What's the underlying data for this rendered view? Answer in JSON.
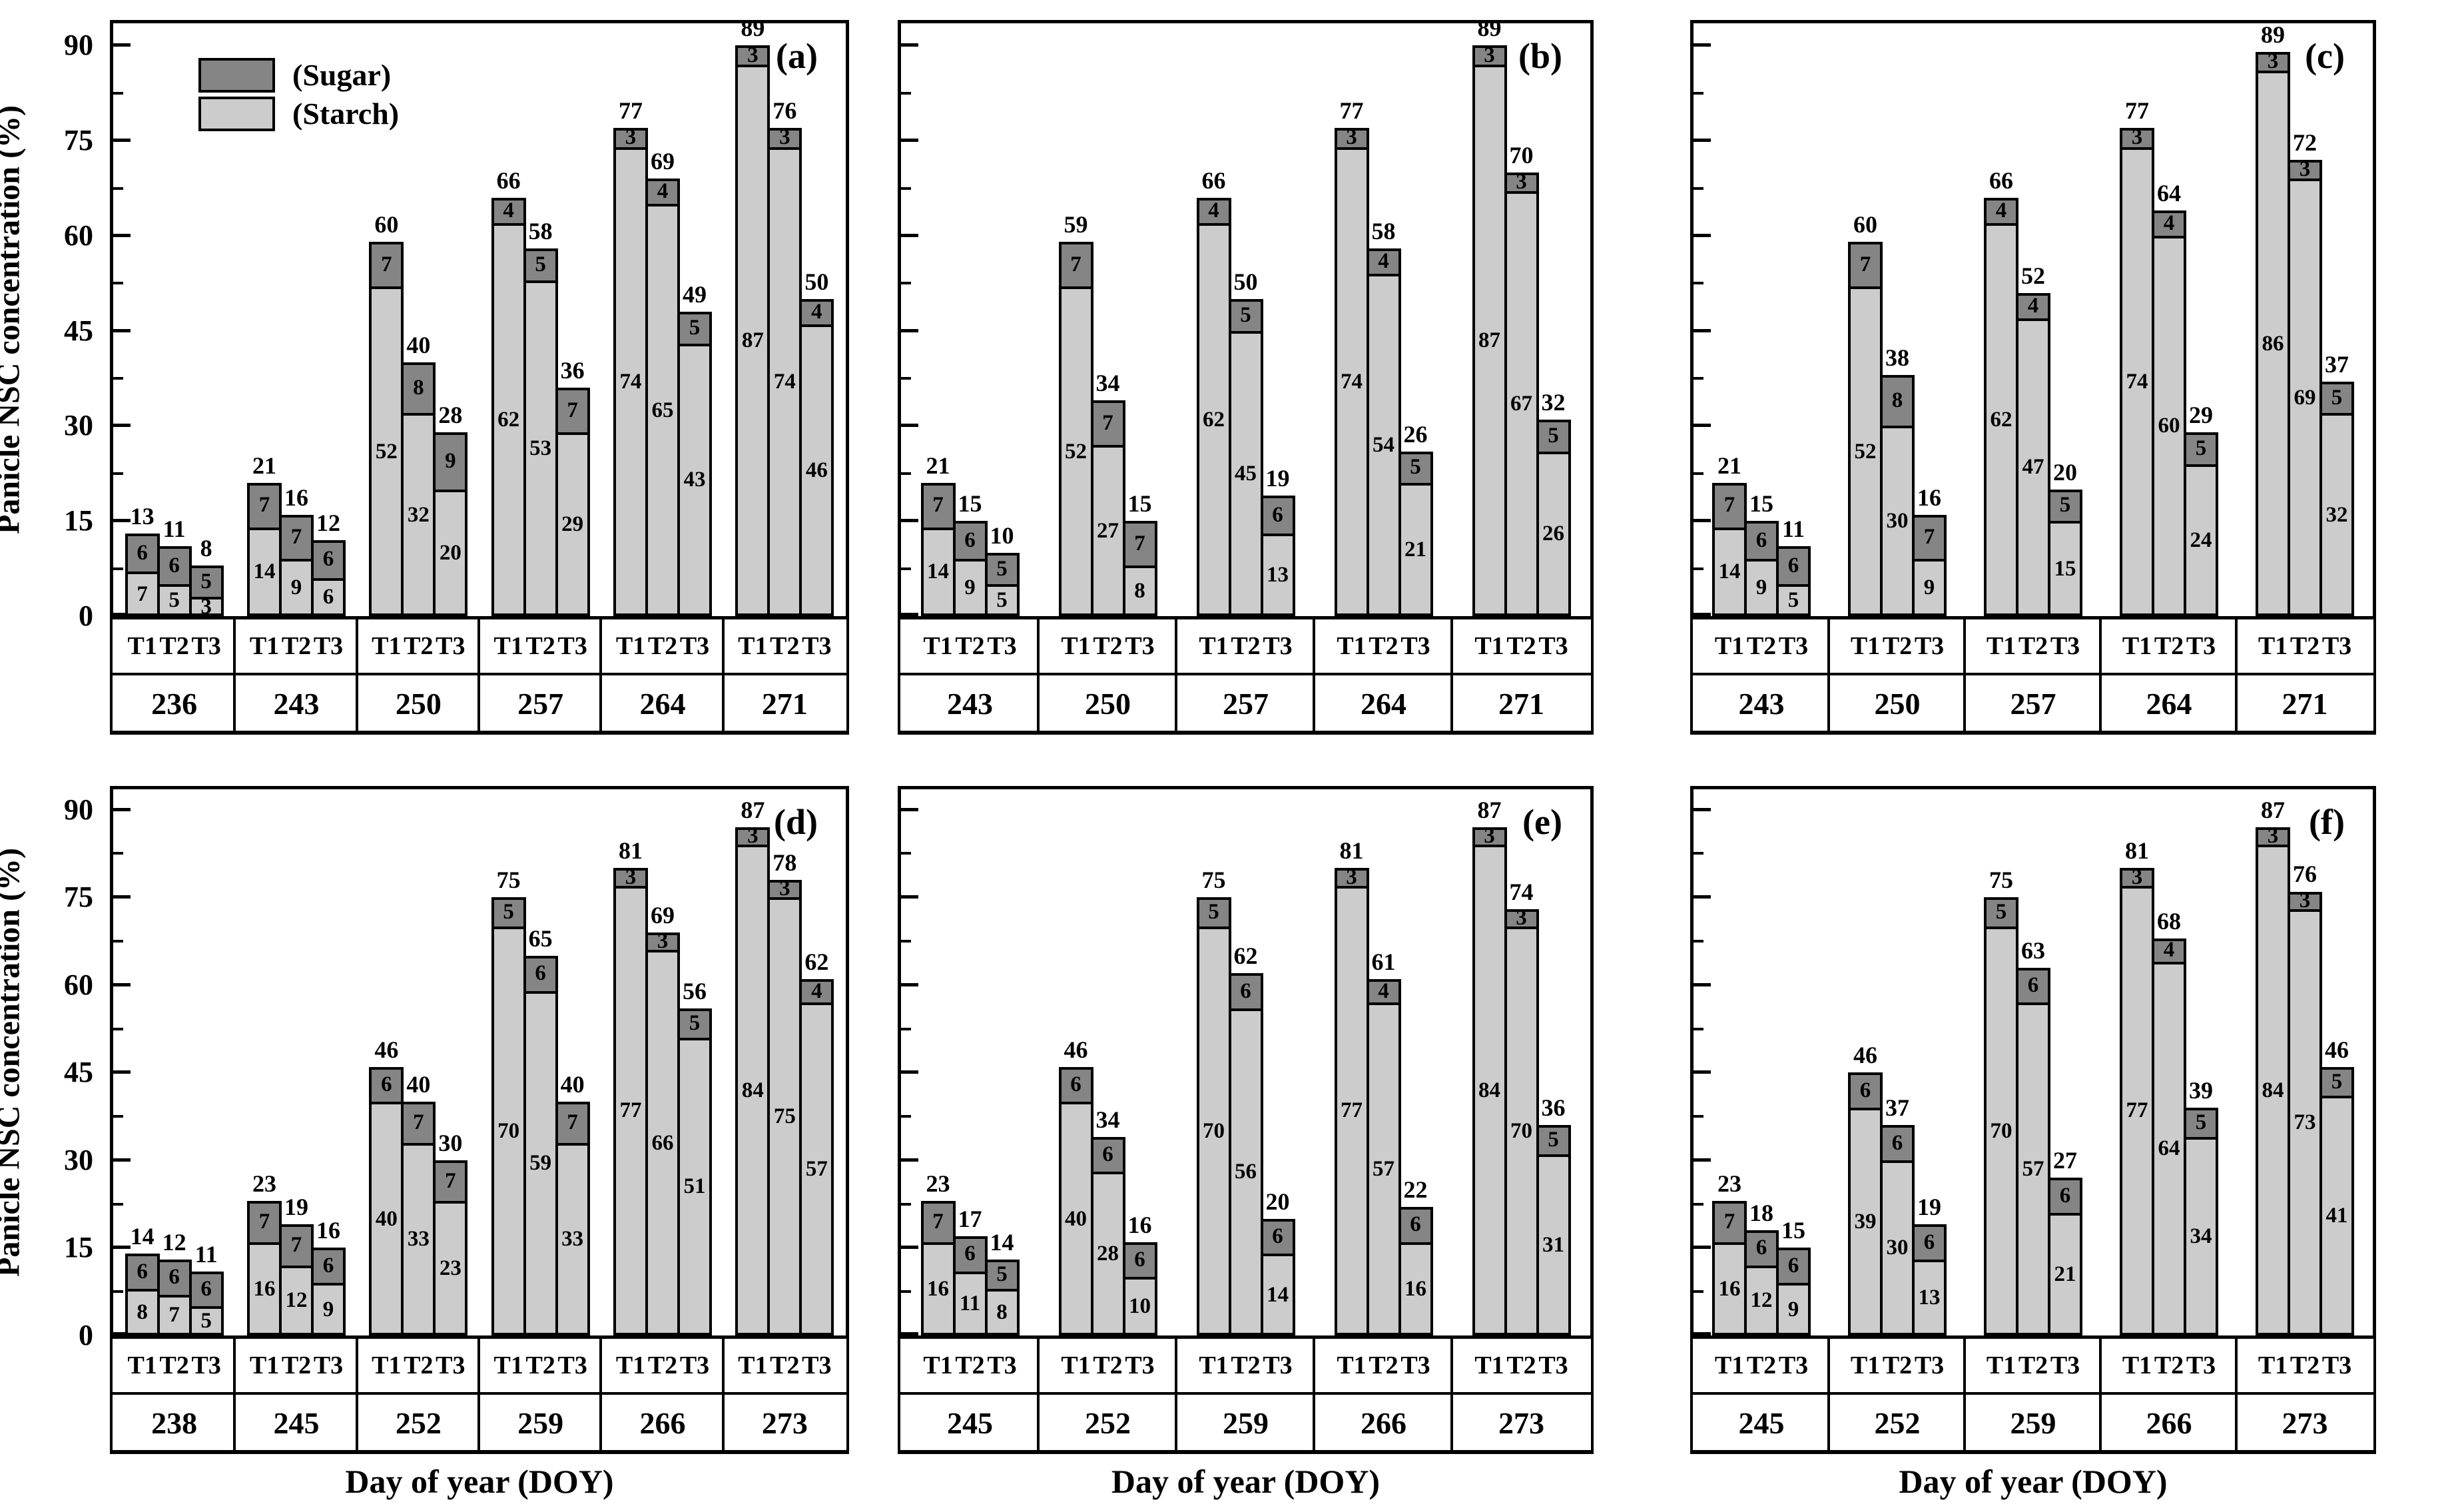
{
  "chart_data": {
    "type": "bar",
    "stacked": true,
    "title": "",
    "ylabel": "Panicle NSC concentration (%)",
    "xlabel": "Day of year (DOY)",
    "yticks": [
      0,
      15,
      30,
      45,
      60,
      75,
      90
    ],
    "ylim": [
      0,
      93.5
    ],
    "minor_tick_step": 7.5,
    "treatments": [
      "T1",
      "T2",
      "T3"
    ],
    "legend": {
      "sugar_label": "(Sugar)",
      "starch_label": "(Starch)"
    },
    "colors": {
      "sugar": "#858585",
      "starch": "#cccccc",
      "axis": "#000000",
      "background": "#ffffff"
    },
    "panels": [
      {
        "id": "a",
        "letter": "(a)",
        "row": 0,
        "col": 0,
        "show_y_tick_labels": true,
        "show_y_title": true,
        "show_legend": true,
        "show_x_title": false,
        "groups": [
          {
            "doy": "236",
            "bars": [
              {
                "t": "T1",
                "starch": 7,
                "sugar": 6,
                "total": 13
              },
              {
                "t": "T2",
                "starch": 5,
                "sugar": 6,
                "total": 11
              },
              {
                "t": "T3",
                "starch": 3,
                "sugar": 5,
                "total": 8
              }
            ]
          },
          {
            "doy": "243",
            "bars": [
              {
                "t": "T1",
                "starch": 14,
                "sugar": 7,
                "total": 21
              },
              {
                "t": "T2",
                "starch": 9,
                "sugar": 7,
                "total": 16
              },
              {
                "t": "T3",
                "starch": 6,
                "sugar": 6,
                "total": 12
              }
            ]
          },
          {
            "doy": "250",
            "bars": [
              {
                "t": "T1",
                "starch": 52,
                "sugar": 7,
                "total": 60
              },
              {
                "t": "T2",
                "starch": 32,
                "sugar": 8,
                "total": 40
              },
              {
                "t": "T3",
                "starch": 20,
                "sugar": 9,
                "total": 28
              }
            ]
          },
          {
            "doy": "257",
            "bars": [
              {
                "t": "T1",
                "starch": 62,
                "sugar": 4,
                "total": 66
              },
              {
                "t": "T2",
                "starch": 53,
                "sugar": 5,
                "total": 58
              },
              {
                "t": "T3",
                "starch": 29,
                "sugar": 7,
                "total": 36
              }
            ]
          },
          {
            "doy": "264",
            "bars": [
              {
                "t": "T1",
                "starch": 74,
                "sugar": 3,
                "total": 77
              },
              {
                "t": "T2",
                "starch": 65,
                "sugar": 4,
                "total": 69
              },
              {
                "t": "T3",
                "starch": 43,
                "sugar": 5,
                "total": 49
              }
            ]
          },
          {
            "doy": "271",
            "bars": [
              {
                "t": "T1",
                "starch": 87,
                "sugar": 3,
                "total": 89
              },
              {
                "t": "T2",
                "starch": 74,
                "sugar": 3,
                "total": 76
              },
              {
                "t": "T3",
                "starch": 46,
                "sugar": 4,
                "total": 50
              }
            ]
          }
        ]
      },
      {
        "id": "b",
        "letter": "(b)",
        "row": 0,
        "col": 1,
        "show_y_tick_labels": false,
        "show_y_title": false,
        "show_legend": false,
        "show_x_title": false,
        "groups": [
          {
            "doy": "243",
            "bars": [
              {
                "t": "T1",
                "starch": 14,
                "sugar": 7,
                "total": 21
              },
              {
                "t": "T2",
                "starch": 9,
                "sugar": 6,
                "total": 15
              },
              {
                "t": "T3",
                "starch": 5,
                "sugar": 5,
                "total": 10
              }
            ]
          },
          {
            "doy": "250",
            "bars": [
              {
                "t": "T1",
                "starch": 52,
                "sugar": 7,
                "total": 59
              },
              {
                "t": "T2",
                "starch": 27,
                "sugar": 7,
                "total": 34
              },
              {
                "t": "T3",
                "starch": 8,
                "sugar": 7,
                "total": 15
              }
            ]
          },
          {
            "doy": "257",
            "bars": [
              {
                "t": "T1",
                "starch": 62,
                "sugar": 4,
                "total": 66
              },
              {
                "t": "T2",
                "starch": 45,
                "sugar": 5,
                "total": 50
              },
              {
                "t": "T3",
                "starch": 13,
                "sugar": 6,
                "total": 19
              }
            ]
          },
          {
            "doy": "264",
            "bars": [
              {
                "t": "T1",
                "starch": 74,
                "sugar": 3,
                "total": 77
              },
              {
                "t": "T2",
                "starch": 54,
                "sugar": 4,
                "total": 58
              },
              {
                "t": "T3",
                "starch": 21,
                "sugar": 5,
                "total": 26
              }
            ]
          },
          {
            "doy": "271",
            "bars": [
              {
                "t": "T1",
                "starch": 87,
                "sugar": 3,
                "total": 89
              },
              {
                "t": "T2",
                "starch": 67,
                "sugar": 3,
                "total": 70
              },
              {
                "t": "T3",
                "starch": 26,
                "sugar": 5,
                "total": 32
              }
            ]
          }
        ]
      },
      {
        "id": "c",
        "letter": "(c)",
        "row": 0,
        "col": 2,
        "show_y_tick_labels": false,
        "show_y_title": false,
        "show_legend": false,
        "show_x_title": false,
        "groups": [
          {
            "doy": "243",
            "bars": [
              {
                "t": "T1",
                "starch": 14,
                "sugar": 7,
                "total": 21
              },
              {
                "t": "T2",
                "starch": 9,
                "sugar": 6,
                "total": 15
              },
              {
                "t": "T3",
                "starch": 5,
                "sugar": 6,
                "total": 11
              }
            ]
          },
          {
            "doy": "250",
            "bars": [
              {
                "t": "T1",
                "starch": 52,
                "sugar": 7,
                "total": 60
              },
              {
                "t": "T2",
                "starch": 30,
                "sugar": 8,
                "total": 38
              },
              {
                "t": "T3",
                "starch": 9,
                "sugar": 7,
                "total": 16
              }
            ]
          },
          {
            "doy": "257",
            "bars": [
              {
                "t": "T1",
                "starch": 62,
                "sugar": 4,
                "total": 66
              },
              {
                "t": "T2",
                "starch": 47,
                "sugar": 4,
                "total": 52
              },
              {
                "t": "T3",
                "starch": 15,
                "sugar": 5,
                "total": 20
              }
            ]
          },
          {
            "doy": "264",
            "bars": [
              {
                "t": "T1",
                "starch": 74,
                "sugar": 3,
                "total": 77
              },
              {
                "t": "T2",
                "starch": 60,
                "sugar": 4,
                "total": 64
              },
              {
                "t": "T3",
                "starch": 24,
                "sugar": 5,
                "total": 29
              }
            ]
          },
          {
            "doy": "271",
            "bars": [
              {
                "t": "T1",
                "starch": 86,
                "sugar": 3,
                "total": 89
              },
              {
                "t": "T2",
                "starch": 69,
                "sugar": 3,
                "total": 72
              },
              {
                "t": "T3",
                "starch": 32,
                "sugar": 5,
                "total": 37
              }
            ]
          }
        ]
      },
      {
        "id": "d",
        "letter": "(d)",
        "row": 1,
        "col": 0,
        "show_y_tick_labels": true,
        "show_y_title": true,
        "show_legend": false,
        "show_x_title": true,
        "groups": [
          {
            "doy": "238",
            "bars": [
              {
                "t": "T1",
                "starch": 8,
                "sugar": 6,
                "total": 14
              },
              {
                "t": "T2",
                "starch": 7,
                "sugar": 6,
                "total": 12
              },
              {
                "t": "T3",
                "starch": 5,
                "sugar": 6,
                "total": 11
              }
            ]
          },
          {
            "doy": "245",
            "bars": [
              {
                "t": "T1",
                "starch": 16,
                "sugar": 7,
                "total": 23
              },
              {
                "t": "T2",
                "starch": 12,
                "sugar": 7,
                "total": 19
              },
              {
                "t": "T3",
                "starch": 9,
                "sugar": 6,
                "total": 16
              }
            ]
          },
          {
            "doy": "252",
            "bars": [
              {
                "t": "T1",
                "starch": 40,
                "sugar": 6,
                "total": 46
              },
              {
                "t": "T2",
                "starch": 33,
                "sugar": 7,
                "total": 40
              },
              {
                "t": "T3",
                "starch": 23,
                "sugar": 7,
                "total": 30
              }
            ]
          },
          {
            "doy": "259",
            "bars": [
              {
                "t": "T1",
                "starch": 70,
                "sugar": 5,
                "total": 75
              },
              {
                "t": "T2",
                "starch": 59,
                "sugar": 6,
                "total": 65
              },
              {
                "t": "T3",
                "starch": 33,
                "sugar": 7,
                "total": 40
              }
            ]
          },
          {
            "doy": "266",
            "bars": [
              {
                "t": "T1",
                "starch": 77,
                "sugar": 3,
                "total": 81
              },
              {
                "t": "T2",
                "starch": 66,
                "sugar": 3,
                "total": 69
              },
              {
                "t": "T3",
                "starch": 51,
                "sugar": 5,
                "total": 56
              }
            ]
          },
          {
            "doy": "273",
            "bars": [
              {
                "t": "T1",
                "starch": 84,
                "sugar": 3,
                "total": 87
              },
              {
                "t": "T2",
                "starch": 75,
                "sugar": 3,
                "total": 78
              },
              {
                "t": "T3",
                "starch": 57,
                "sugar": 4,
                "total": 62
              }
            ]
          }
        ]
      },
      {
        "id": "e",
        "letter": "(e)",
        "row": 1,
        "col": 1,
        "show_y_tick_labels": false,
        "show_y_title": false,
        "show_legend": false,
        "show_x_title": true,
        "groups": [
          {
            "doy": "245",
            "bars": [
              {
                "t": "T1",
                "starch": 16,
                "sugar": 7,
                "total": 23
              },
              {
                "t": "T2",
                "starch": 11,
                "sugar": 6,
                "total": 17
              },
              {
                "t": "T3",
                "starch": 8,
                "sugar": 5,
                "total": 14
              }
            ]
          },
          {
            "doy": "252",
            "bars": [
              {
                "t": "T1",
                "starch": 40,
                "sugar": 6,
                "total": 46
              },
              {
                "t": "T2",
                "starch": 28,
                "sugar": 6,
                "total": 34
              },
              {
                "t": "T3",
                "starch": 10,
                "sugar": 6,
                "total": 16
              }
            ]
          },
          {
            "doy": "259",
            "bars": [
              {
                "t": "T1",
                "starch": 70,
                "sugar": 5,
                "total": 75
              },
              {
                "t": "T2",
                "starch": 56,
                "sugar": 6,
                "total": 62
              },
              {
                "t": "T3",
                "starch": 14,
                "sugar": 6,
                "total": 20
              }
            ]
          },
          {
            "doy": "266",
            "bars": [
              {
                "t": "T1",
                "starch": 77,
                "sugar": 3,
                "total": 81
              },
              {
                "t": "T2",
                "starch": 57,
                "sugar": 4,
                "total": 61
              },
              {
                "t": "T3",
                "starch": 16,
                "sugar": 6,
                "total": 22
              }
            ]
          },
          {
            "doy": "273",
            "bars": [
              {
                "t": "T1",
                "starch": 84,
                "sugar": 3,
                "total": 87
              },
              {
                "t": "T2",
                "starch": 70,
                "sugar": 3,
                "total": 74
              },
              {
                "t": "T3",
                "starch": 31,
                "sugar": 5,
                "total": 36
              }
            ]
          }
        ]
      },
      {
        "id": "f",
        "letter": "(f)",
        "row": 1,
        "col": 2,
        "show_y_tick_labels": false,
        "show_y_title": false,
        "show_legend": false,
        "show_x_title": true,
        "groups": [
          {
            "doy": "245",
            "bars": [
              {
                "t": "T1",
                "starch": 16,
                "sugar": 7,
                "total": 23
              },
              {
                "t": "T2",
                "starch": 12,
                "sugar": 6,
                "total": 18
              },
              {
                "t": "T3",
                "starch": 9,
                "sugar": 6,
                "total": 15
              }
            ]
          },
          {
            "doy": "252",
            "bars": [
              {
                "t": "T1",
                "starch": 39,
                "sugar": 6,
                "total": 46
              },
              {
                "t": "T2",
                "starch": 30,
                "sugar": 6,
                "total": 37
              },
              {
                "t": "T3",
                "starch": 13,
                "sugar": 6,
                "total": 19
              }
            ]
          },
          {
            "doy": "259",
            "bars": [
              {
                "t": "T1",
                "starch": 70,
                "sugar": 5,
                "total": 75
              },
              {
                "t": "T2",
                "starch": 57,
                "sugar": 6,
                "total": 63
              },
              {
                "t": "T3",
                "starch": 21,
                "sugar": 6,
                "total": 27
              }
            ]
          },
          {
            "doy": "266",
            "bars": [
              {
                "t": "T1",
                "starch": 77,
                "sugar": 3,
                "total": 81
              },
              {
                "t": "T2",
                "starch": 64,
                "sugar": 4,
                "total": 68
              },
              {
                "t": "T3",
                "starch": 34,
                "sugar": 5,
                "total": 39
              }
            ]
          },
          {
            "doy": "273",
            "bars": [
              {
                "t": "T1",
                "starch": 84,
                "sugar": 3,
                "total": 87
              },
              {
                "t": "T2",
                "starch": 73,
                "sugar": 3,
                "total": 76
              },
              {
                "t": "T3",
                "starch": 41,
                "sugar": 5,
                "total": 46
              }
            ]
          }
        ]
      }
    ]
  }
}
